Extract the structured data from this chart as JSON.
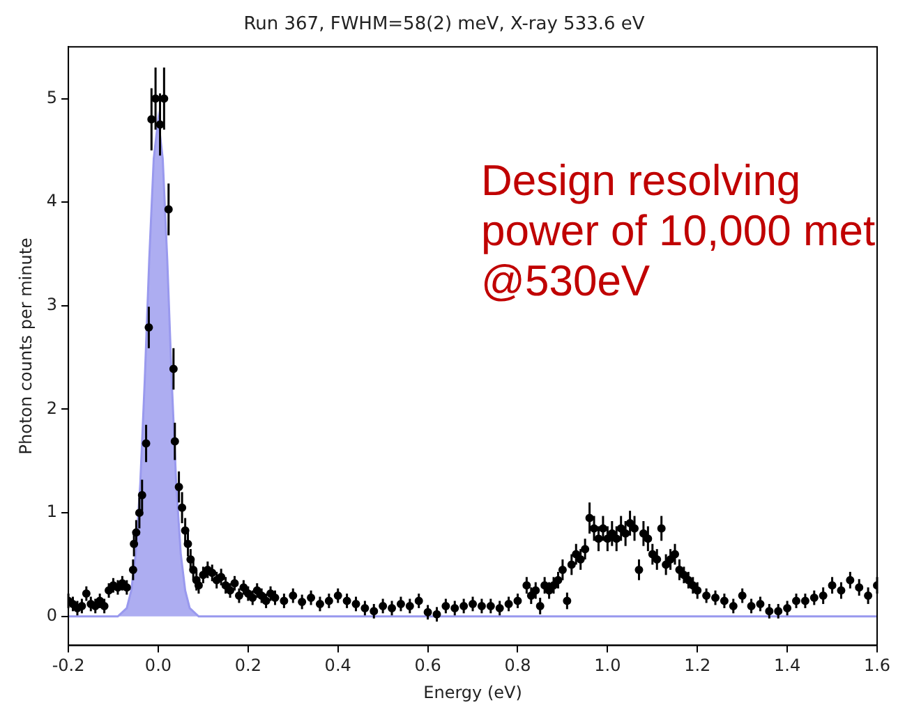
{
  "chart_data": {
    "type": "scatter",
    "title": "Run 367, FWHM=58(2) meV, X-ray 533.6 eV",
    "xlabel": "Energy (eV)",
    "ylabel": "Photon counts per minute",
    "annotations": [
      "Design resolving power of 10,000 met @530eV"
    ],
    "xlim": [
      -0.2,
      1.6
    ],
    "xticks": [
      -0.2,
      {
        "value": 0,
        "label": "0.0"
      },
      0.2,
      0.4,
      0.6,
      0.8,
      {
        "value": 1,
        "label": "1.0"
      },
      1.2,
      1.4,
      1.6
    ],
    "ylim": [
      -0.28,
      5.5
    ],
    "yticks": [
      0,
      1,
      2,
      3,
      4,
      5
    ],
    "grid": false,
    "legend": false,
    "series": [
      {
        "type": "area",
        "color": "#9999ee",
        "x": [
          -0.2,
          -0.09,
          -0.07,
          -0.06,
          -0.05,
          -0.04,
          -0.03,
          -0.02,
          -0.01,
          0,
          0.01,
          0.02,
          0.03,
          0.04,
          0.05,
          0.06,
          0.07,
          0.09,
          1.6
        ],
        "values": [
          0,
          0,
          0.08,
          0.25,
          0.61,
          1.28,
          2.28,
          3.45,
          4.42,
          4.8,
          4.42,
          3.45,
          2.28,
          1.28,
          0.61,
          0.25,
          0.08,
          0,
          0
        ]
      },
      {
        "color": "#000000",
        "marker": "circle",
        "x": [
          -0.2,
          -0.19,
          -0.18,
          -0.17,
          -0.16,
          -0.15,
          -0.14,
          -0.13,
          -0.12,
          -0.11,
          -0.1,
          -0.09,
          -0.08,
          -0.07,
          -0.056,
          -0.054,
          -0.049,
          -0.042,
          -0.036,
          -0.027,
          -0.021,
          -0.015,
          -0.006,
          0.004,
          0.013,
          0.023,
          0.034,
          0.037,
          0.046,
          0.053,
          0.06,
          0.066,
          0.072,
          0.078,
          0.085,
          0.09,
          0.1,
          0.11,
          0.12,
          0.13,
          0.14,
          0.15,
          0.16,
          0.17,
          0.18,
          0.19,
          0.2,
          0.21,
          0.22,
          0.23,
          0.24,
          0.25,
          0.26,
          0.28,
          0.3,
          0.32,
          0.34,
          0.36,
          0.38,
          0.4,
          0.42,
          0.44,
          0.46,
          0.48,
          0.5,
          0.52,
          0.54,
          0.56,
          0.58,
          0.6,
          0.62,
          0.64,
          0.66,
          0.68,
          0.7,
          0.72,
          0.74,
          0.76,
          0.78,
          0.8,
          0.82,
          0.83,
          0.84,
          0.85,
          0.86,
          0.87,
          0.88,
          0.89,
          0.9,
          0.91,
          0.92,
          0.93,
          0.94,
          0.95,
          0.96,
          0.97,
          0.98,
          0.99,
          1,
          1.01,
          1.02,
          1.03,
          1.04,
          1.05,
          1.06,
          1.07,
          1.08,
          1.09,
          1.1,
          1.11,
          1.12,
          1.13,
          1.14,
          1.15,
          1.16,
          1.17,
          1.18,
          1.19,
          1.2,
          1.22,
          1.24,
          1.26,
          1.28,
          1.3,
          1.32,
          1.34,
          1.36,
          1.38,
          1.4,
          1.42,
          1.44,
          1.46,
          1.48,
          1.5,
          1.52,
          1.54,
          1.56,
          1.58,
          1.6
        ],
        "values": [
          0.15,
          0.12,
          0.08,
          0.1,
          0.22,
          0.12,
          0.1,
          0.15,
          0.1,
          0.25,
          0.3,
          0.28,
          0.32,
          0.28,
          0.45,
          0.7,
          0.81,
          1,
          1.17,
          1.67,
          2.79,
          4.8,
          5,
          4.75,
          5,
          3.93,
          2.39,
          1.69,
          1.25,
          1.05,
          0.83,
          0.7,
          0.55,
          0.45,
          0.35,
          0.3,
          0.4,
          0.45,
          0.42,
          0.35,
          0.38,
          0.3,
          0.25,
          0.32,
          0.2,
          0.28,
          0.22,
          0.18,
          0.25,
          0.2,
          0.15,
          0.22,
          0.18,
          0.15,
          0.2,
          0.14,
          0.18,
          0.12,
          0.15,
          0.2,
          0.15,
          0.12,
          0.08,
          0.05,
          0.1,
          0.08,
          0.12,
          0.1,
          0.15,
          0.04,
          0.02,
          0.1,
          0.08,
          0.1,
          0.12,
          0.1,
          0.1,
          0.08,
          0.12,
          0.15,
          0.3,
          0.2,
          0.25,
          0.1,
          0.3,
          0.25,
          0.3,
          0.35,
          0.45,
          0.15,
          0.5,
          0.6,
          0.55,
          0.65,
          0.95,
          0.85,
          0.75,
          0.85,
          0.75,
          0.8,
          0.75,
          0.85,
          0.8,
          0.9,
          0.85,
          0.45,
          0.8,
          0.75,
          0.6,
          0.55,
          0.85,
          0.5,
          0.55,
          0.6,
          0.45,
          0.4,
          0.35,
          0.3,
          0.25,
          0.2,
          0.18,
          0.15,
          0.1,
          0.2,
          0.1,
          0.12,
          0.05,
          0.05,
          0.08,
          0.15,
          0.15,
          0.18,
          0.2,
          0.3,
          0.25,
          0.35,
          0.28,
          0.2,
          0.3
        ],
        "errors": [
          0.07,
          0.07,
          0.07,
          0.07,
          0.07,
          0.07,
          0.07,
          0.07,
          0.07,
          0.07,
          0.07,
          0.07,
          0.07,
          0.07,
          0.1,
          0.12,
          0.12,
          0.15,
          0.15,
          0.18,
          0.2,
          0.3,
          0.3,
          0.3,
          0.3,
          0.25,
          0.2,
          0.18,
          0.15,
          0.15,
          0.12,
          0.12,
          0.1,
          0.1,
          0.1,
          0.08,
          0.08,
          0.08,
          0.08,
          0.08,
          0.08,
          0.08,
          0.07,
          0.07,
          0.07,
          0.07,
          0.07,
          0.07,
          0.07,
          0.07,
          0.07,
          0.07,
          0.07,
          0.07,
          0.07,
          0.07,
          0.07,
          0.07,
          0.07,
          0.07,
          0.07,
          0.07,
          0.07,
          0.07,
          0.07,
          0.07,
          0.07,
          0.07,
          0.07,
          0.07,
          0.07,
          0.07,
          0.07,
          0.07,
          0.07,
          0.07,
          0.07,
          0.07,
          0.07,
          0.07,
          0.08,
          0.08,
          0.08,
          0.08,
          0.08,
          0.08,
          0.08,
          0.08,
          0.1,
          0.08,
          0.1,
          0.1,
          0.1,
          0.1,
          0.15,
          0.12,
          0.12,
          0.12,
          0.12,
          0.12,
          0.12,
          0.12,
          0.12,
          0.12,
          0.12,
          0.1,
          0.12,
          0.12,
          0.1,
          0.1,
          0.12,
          0.1,
          0.1,
          0.1,
          0.1,
          0.08,
          0.08,
          0.08,
          0.08,
          0.07,
          0.07,
          0.07,
          0.07,
          0.07,
          0.07,
          0.07,
          0.07,
          0.07,
          0.07,
          0.07,
          0.07,
          0.07,
          0.08,
          0.08,
          0.08,
          0.08,
          0.08,
          0.08,
          0.08
        ]
      }
    ]
  }
}
